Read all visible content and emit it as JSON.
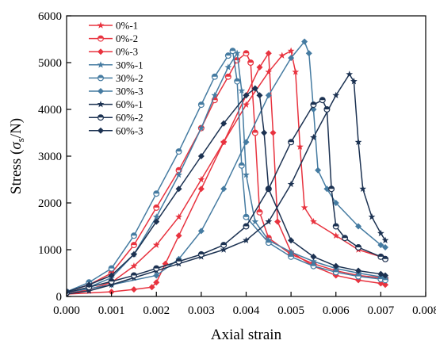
{
  "chart_data": {
    "type": "line",
    "xlabel": "Axial strain",
    "ylabel": {
      "prefix": "Stress (",
      "symbol": "σ",
      "subscript": "s",
      "suffix": "/N)"
    },
    "xlim": [
      0,
      0.008
    ],
    "ylim": [
      0,
      6000
    ],
    "xticks": [
      "0.000",
      "0.001",
      "0.002",
      "0.003",
      "0.004",
      "0.005",
      "0.006",
      "0.007",
      "0.008"
    ],
    "yticks": [
      "0",
      "1000",
      "2000",
      "3000",
      "4000",
      "5000",
      "6000"
    ],
    "legend_position": "top-left",
    "series": [
      {
        "name": "0%-1",
        "color": "#e8333f",
        "marker": "star",
        "x": [
          0.0,
          0.0005,
          0.001,
          0.0015,
          0.002,
          0.0025,
          0.003,
          0.0035,
          0.004,
          0.0045,
          0.0048,
          0.005,
          0.0051,
          0.0052,
          0.0053,
          0.0055,
          0.006,
          0.0065,
          0.007,
          0.0071
        ],
        "y": [
          50,
          150,
          300,
          650,
          1100,
          1700,
          2500,
          3300,
          4100,
          4800,
          5150,
          5250,
          4800,
          3200,
          1900,
          1600,
          1300,
          1000,
          850,
          800
        ]
      },
      {
        "name": "0%-2",
        "color": "#e8333f",
        "marker": "half-circle",
        "x": [
          0.0,
          0.0005,
          0.001,
          0.0015,
          0.002,
          0.0025,
          0.003,
          0.0033,
          0.0036,
          0.0038,
          0.004,
          0.0041,
          0.0042,
          0.0043,
          0.0045,
          0.005,
          0.0055,
          0.006,
          0.0065,
          0.007,
          0.0071
        ],
        "y": [
          100,
          250,
          500,
          1100,
          1900,
          2700,
          3600,
          4200,
          4700,
          5050,
          5200,
          5000,
          3500,
          1800,
          1250,
          900,
          700,
          550,
          450,
          400,
          380
        ]
      },
      {
        "name": "0%-3",
        "color": "#e8333f",
        "marker": "diamond",
        "x": [
          0.0,
          0.001,
          0.0015,
          0.0019,
          0.002,
          0.0022,
          0.0025,
          0.003,
          0.0035,
          0.004,
          0.0043,
          0.0045,
          0.0046,
          0.0047,
          0.005,
          0.0055,
          0.006,
          0.0065,
          0.007,
          0.0071
        ],
        "y": [
          50,
          100,
          150,
          200,
          300,
          700,
          1300,
          2300,
          3300,
          4300,
          4900,
          5200,
          3500,
          1600,
          950,
          650,
          450,
          350,
          280,
          250
        ]
      },
      {
        "name": "30%-1",
        "color": "#457ba1",
        "marker": "star",
        "x": [
          0.0,
          0.0005,
          0.001,
          0.0015,
          0.002,
          0.0025,
          0.003,
          0.0033,
          0.0036,
          0.0038,
          0.0039,
          0.004,
          0.0042,
          0.0045,
          0.005,
          0.0055,
          0.006,
          0.0065,
          0.007,
          0.0071
        ],
        "y": [
          80,
          200,
          400,
          900,
          1700,
          2600,
          3600,
          4300,
          4900,
          5200,
          4400,
          2600,
          1600,
          1200,
          950,
          750,
          600,
          500,
          420,
          400
        ]
      },
      {
        "name": "30%-2",
        "color": "#457ba1",
        "marker": "half-circle",
        "x": [
          0.0,
          0.0005,
          0.001,
          0.0015,
          0.002,
          0.0025,
          0.003,
          0.0033,
          0.0036,
          0.0037,
          0.0038,
          0.0039,
          0.004,
          0.0045,
          0.005,
          0.0055,
          0.006,
          0.0065,
          0.007,
          0.0071
        ],
        "y": [
          100,
          300,
          600,
          1300,
          2200,
          3100,
          4100,
          4700,
          5150,
          5250,
          4600,
          2800,
          1700,
          1150,
          850,
          650,
          520,
          430,
          370,
          350
        ]
      },
      {
        "name": "30%-3",
        "color": "#457ba1",
        "marker": "diamond",
        "x": [
          0.0,
          0.001,
          0.002,
          0.0025,
          0.003,
          0.0035,
          0.004,
          0.0045,
          0.005,
          0.0053,
          0.0054,
          0.0055,
          0.0056,
          0.0058,
          0.006,
          0.0065,
          0.007,
          0.0071
        ],
        "y": [
          80,
          250,
          450,
          800,
          1400,
          2300,
          3300,
          4300,
          5100,
          5450,
          5200,
          4000,
          2700,
          2300,
          2000,
          1500,
          1100,
          1050
        ]
      },
      {
        "name": "60%-1",
        "color": "#1c3252",
        "marker": "star",
        "x": [
          0.0,
          0.0005,
          0.001,
          0.0015,
          0.002,
          0.0025,
          0.003,
          0.0035,
          0.004,
          0.0045,
          0.005,
          0.0055,
          0.006,
          0.0063,
          0.0064,
          0.0065,
          0.0066,
          0.0068,
          0.007,
          0.0071
        ],
        "y": [
          50,
          120,
          250,
          400,
          550,
          700,
          850,
          1000,
          1200,
          1600,
          2400,
          3400,
          4300,
          4750,
          4600,
          3300,
          2300,
          1700,
          1350,
          1200
        ]
      },
      {
        "name": "60%-2",
        "color": "#1c3252",
        "marker": "half-circle",
        "x": [
          0.0,
          0.0005,
          0.001,
          0.0015,
          0.002,
          0.0025,
          0.003,
          0.0035,
          0.004,
          0.0045,
          0.005,
          0.0055,
          0.0057,
          0.0058,
          0.0059,
          0.006,
          0.0062,
          0.0065,
          0.007,
          0.0071
        ],
        "y": [
          80,
          200,
          320,
          450,
          600,
          750,
          900,
          1100,
          1500,
          2300,
          3300,
          4100,
          4200,
          4000,
          2300,
          1500,
          1250,
          1050,
          850,
          800
        ]
      },
      {
        "name": "60%-3",
        "color": "#1c3252",
        "marker": "diamond",
        "x": [
          0.0,
          0.0005,
          0.001,
          0.0015,
          0.002,
          0.0025,
          0.003,
          0.0035,
          0.004,
          0.0042,
          0.0043,
          0.0044,
          0.0045,
          0.005,
          0.0055,
          0.006,
          0.0065,
          0.007,
          0.0071
        ],
        "y": [
          100,
          250,
          450,
          900,
          1600,
          2300,
          3000,
          3700,
          4300,
          4450,
          4300,
          3500,
          2300,
          1200,
          850,
          650,
          550,
          480,
          450
        ]
      }
    ]
  }
}
